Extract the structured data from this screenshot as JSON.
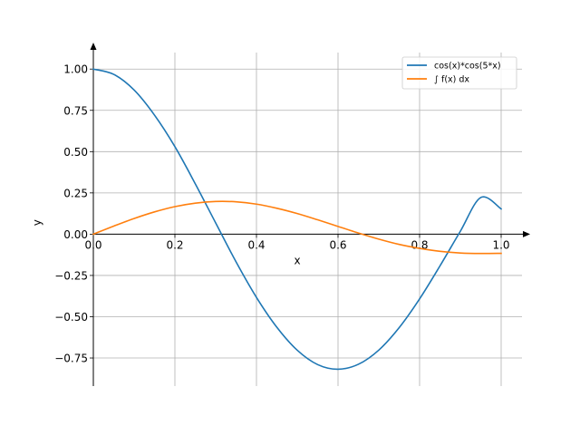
{
  "chart_data": {
    "type": "line",
    "xlabel": "x",
    "ylabel": "y",
    "xlim": [
      0.0,
      1.0
    ],
    "ylim": [
      -0.92,
      1.1
    ],
    "grid": true,
    "legend_position": "top-right",
    "x_ticks": [
      0.0,
      0.2,
      0.4,
      0.6,
      0.8,
      1.0
    ],
    "x_tick_labels": [
      "0.0",
      "0.2",
      "0.4",
      "0.6",
      "0.8",
      "1.0"
    ],
    "y_ticks": [
      1.0,
      0.75,
      0.5,
      0.25,
      0.0,
      -0.25,
      -0.5,
      -0.75
    ],
    "y_tick_labels": [
      "1.00",
      "0.75",
      "0.50",
      "0.25",
      "0.00",
      "−0.25",
      "−0.50",
      "−0.75"
    ],
    "x": [
      0.0,
      0.05,
      0.1,
      0.15,
      0.2,
      0.25,
      0.3,
      0.35,
      0.4,
      0.45,
      0.5,
      0.55,
      0.6,
      0.65,
      0.7,
      0.75,
      0.8,
      0.85,
      0.9,
      0.95,
      1.0
    ],
    "series": [
      {
        "name": "cos(x)*cos(5*x)",
        "color": "#1f77b4",
        "values": [
          1.0,
          0.968,
          0.873,
          0.721,
          0.53,
          0.305,
          0.068,
          -0.168,
          -0.383,
          -0.564,
          -0.703,
          -0.79,
          -0.818,
          -0.788,
          -0.702,
          -0.566,
          -0.392,
          -0.192,
          0.018,
          0.222,
          0.153
        ]
      },
      {
        "name": "∫ f(x) dx",
        "color": "#ff7f0e",
        "values": [
          0.0,
          0.049,
          0.095,
          0.135,
          0.167,
          0.188,
          0.198,
          0.196,
          0.182,
          0.157,
          0.125,
          0.087,
          0.047,
          0.007,
          -0.03,
          -0.062,
          -0.086,
          -0.104,
          -0.114,
          -0.117,
          -0.116
        ]
      }
    ]
  }
}
